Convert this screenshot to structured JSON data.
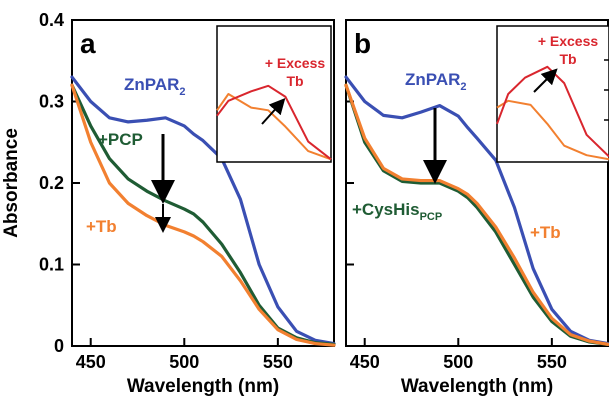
{
  "chart_data": [
    {
      "type": "line",
      "panel_label": "a",
      "xlabel": "Wavelength (nm)",
      "ylabel": "Absorbance",
      "xlim": [
        440,
        580
      ],
      "ylim": [
        0,
        0.4
      ],
      "xticks": [
        450,
        500,
        550
      ],
      "yticks": [
        0,
        0.1,
        0.2,
        0.3,
        0.4
      ],
      "ytick_labels": [
        "0",
        "0.1",
        "0.2",
        "0.3",
        "0.4"
      ],
      "series": [
        {
          "name": "ZnPAR2",
          "color": "#3a4fb3",
          "x": [
            440,
            450,
            460,
            470,
            480,
            490,
            500,
            505,
            510,
            520,
            530,
            540,
            550,
            560,
            570,
            580
          ],
          "y": [
            0.33,
            0.3,
            0.28,
            0.275,
            0.277,
            0.28,
            0.27,
            0.26,
            0.252,
            0.23,
            0.18,
            0.1,
            0.048,
            0.018,
            0.007,
            0.003
          ]
        },
        {
          "name": "+PCP",
          "color": "#1f5c34",
          "x": [
            440,
            450,
            460,
            470,
            480,
            490,
            500,
            505,
            510,
            520,
            530,
            540,
            550,
            560,
            570,
            580
          ],
          "y": [
            0.32,
            0.27,
            0.23,
            0.205,
            0.19,
            0.178,
            0.168,
            0.162,
            0.152,
            0.125,
            0.09,
            0.05,
            0.022,
            0.01,
            0.004,
            0.002
          ]
        },
        {
          "name": "+Tb",
          "color": "#f28030",
          "x": [
            440,
            450,
            460,
            470,
            480,
            490,
            500,
            505,
            510,
            520,
            530,
            540,
            550,
            560,
            570,
            580
          ],
          "y": [
            0.32,
            0.25,
            0.2,
            0.175,
            0.16,
            0.148,
            0.14,
            0.135,
            0.128,
            0.11,
            0.08,
            0.045,
            0.02,
            0.008,
            0.003,
            0.001
          ]
        }
      ],
      "labels": {
        "series_1": "ZnPAR",
        "series_1_sub": "2",
        "series_2": "+PCP",
        "series_3": "+Tb",
        "inset_text_line1": "+ Excess",
        "inset_text_line2": "Tb"
      },
      "inset": {
        "series": [
          {
            "color": "#f28030",
            "points": [
              0,
              0.62,
              0.1,
              0.5,
              0.3,
              0.6,
              0.45,
              0.62,
              0.6,
              0.74,
              0.8,
              0.92,
              1,
              0.98
            ]
          },
          {
            "color": "#d9262e",
            "points": [
              0,
              0.66,
              0.1,
              0.55,
              0.3,
              0.48,
              0.45,
              0.44,
              0.6,
              0.52,
              0.8,
              0.85,
              1,
              0.98
            ]
          }
        ]
      }
    },
    {
      "type": "line",
      "panel_label": "b",
      "xlabel": "Wavelength (nm)",
      "ylabel": "",
      "xlim": [
        440,
        580
      ],
      "ylim": [
        0,
        0.4
      ],
      "xticks": [
        450,
        500,
        550
      ],
      "series": [
        {
          "name": "ZnPAR2",
          "color": "#3a4fb3",
          "x": [
            440,
            450,
            460,
            470,
            480,
            490,
            500,
            505,
            510,
            520,
            530,
            540,
            550,
            560,
            570,
            580
          ],
          "y": [
            0.33,
            0.3,
            0.283,
            0.28,
            0.287,
            0.295,
            0.282,
            0.268,
            0.255,
            0.228,
            0.17,
            0.095,
            0.045,
            0.018,
            0.007,
            0.003
          ]
        },
        {
          "name": "CysHisPCP",
          "color": "#1f5c34",
          "x": [
            440,
            450,
            460,
            470,
            480,
            490,
            500,
            505,
            510,
            520,
            530,
            540,
            550,
            560,
            570,
            580
          ],
          "y": [
            0.32,
            0.25,
            0.215,
            0.202,
            0.2,
            0.2,
            0.19,
            0.182,
            0.17,
            0.14,
            0.1,
            0.06,
            0.03,
            0.012,
            0.005,
            0.002
          ]
        },
        {
          "name": "+Tb",
          "color": "#f28030",
          "x": [
            440,
            450,
            460,
            470,
            480,
            490,
            500,
            505,
            510,
            520,
            530,
            540,
            550,
            560,
            570,
            580
          ],
          "y": [
            0.32,
            0.255,
            0.218,
            0.205,
            0.203,
            0.203,
            0.193,
            0.186,
            0.175,
            0.146,
            0.108,
            0.066,
            0.034,
            0.014,
            0.006,
            0.002
          ]
        }
      ],
      "labels": {
        "series_1": "ZnPAR",
        "series_1_sub": "2",
        "series_2": "+CysHis",
        "series_2_sub": "PCP",
        "series_3": "+Tb",
        "inset_text_line1": "+ Excess",
        "inset_text_line2": "Tb"
      },
      "inset": {
        "series": [
          {
            "color": "#f28030",
            "points": [
              0,
              0.6,
              0.1,
              0.55,
              0.3,
              0.58,
              0.45,
              0.72,
              0.6,
              0.88,
              0.8,
              0.95,
              1,
              0.98
            ]
          },
          {
            "color": "#d9262e",
            "points": [
              0,
              0.72,
              0.1,
              0.5,
              0.25,
              0.38,
              0.45,
              0.3,
              0.6,
              0.42,
              0.8,
              0.8,
              1,
              0.96
            ]
          }
        ]
      }
    }
  ]
}
